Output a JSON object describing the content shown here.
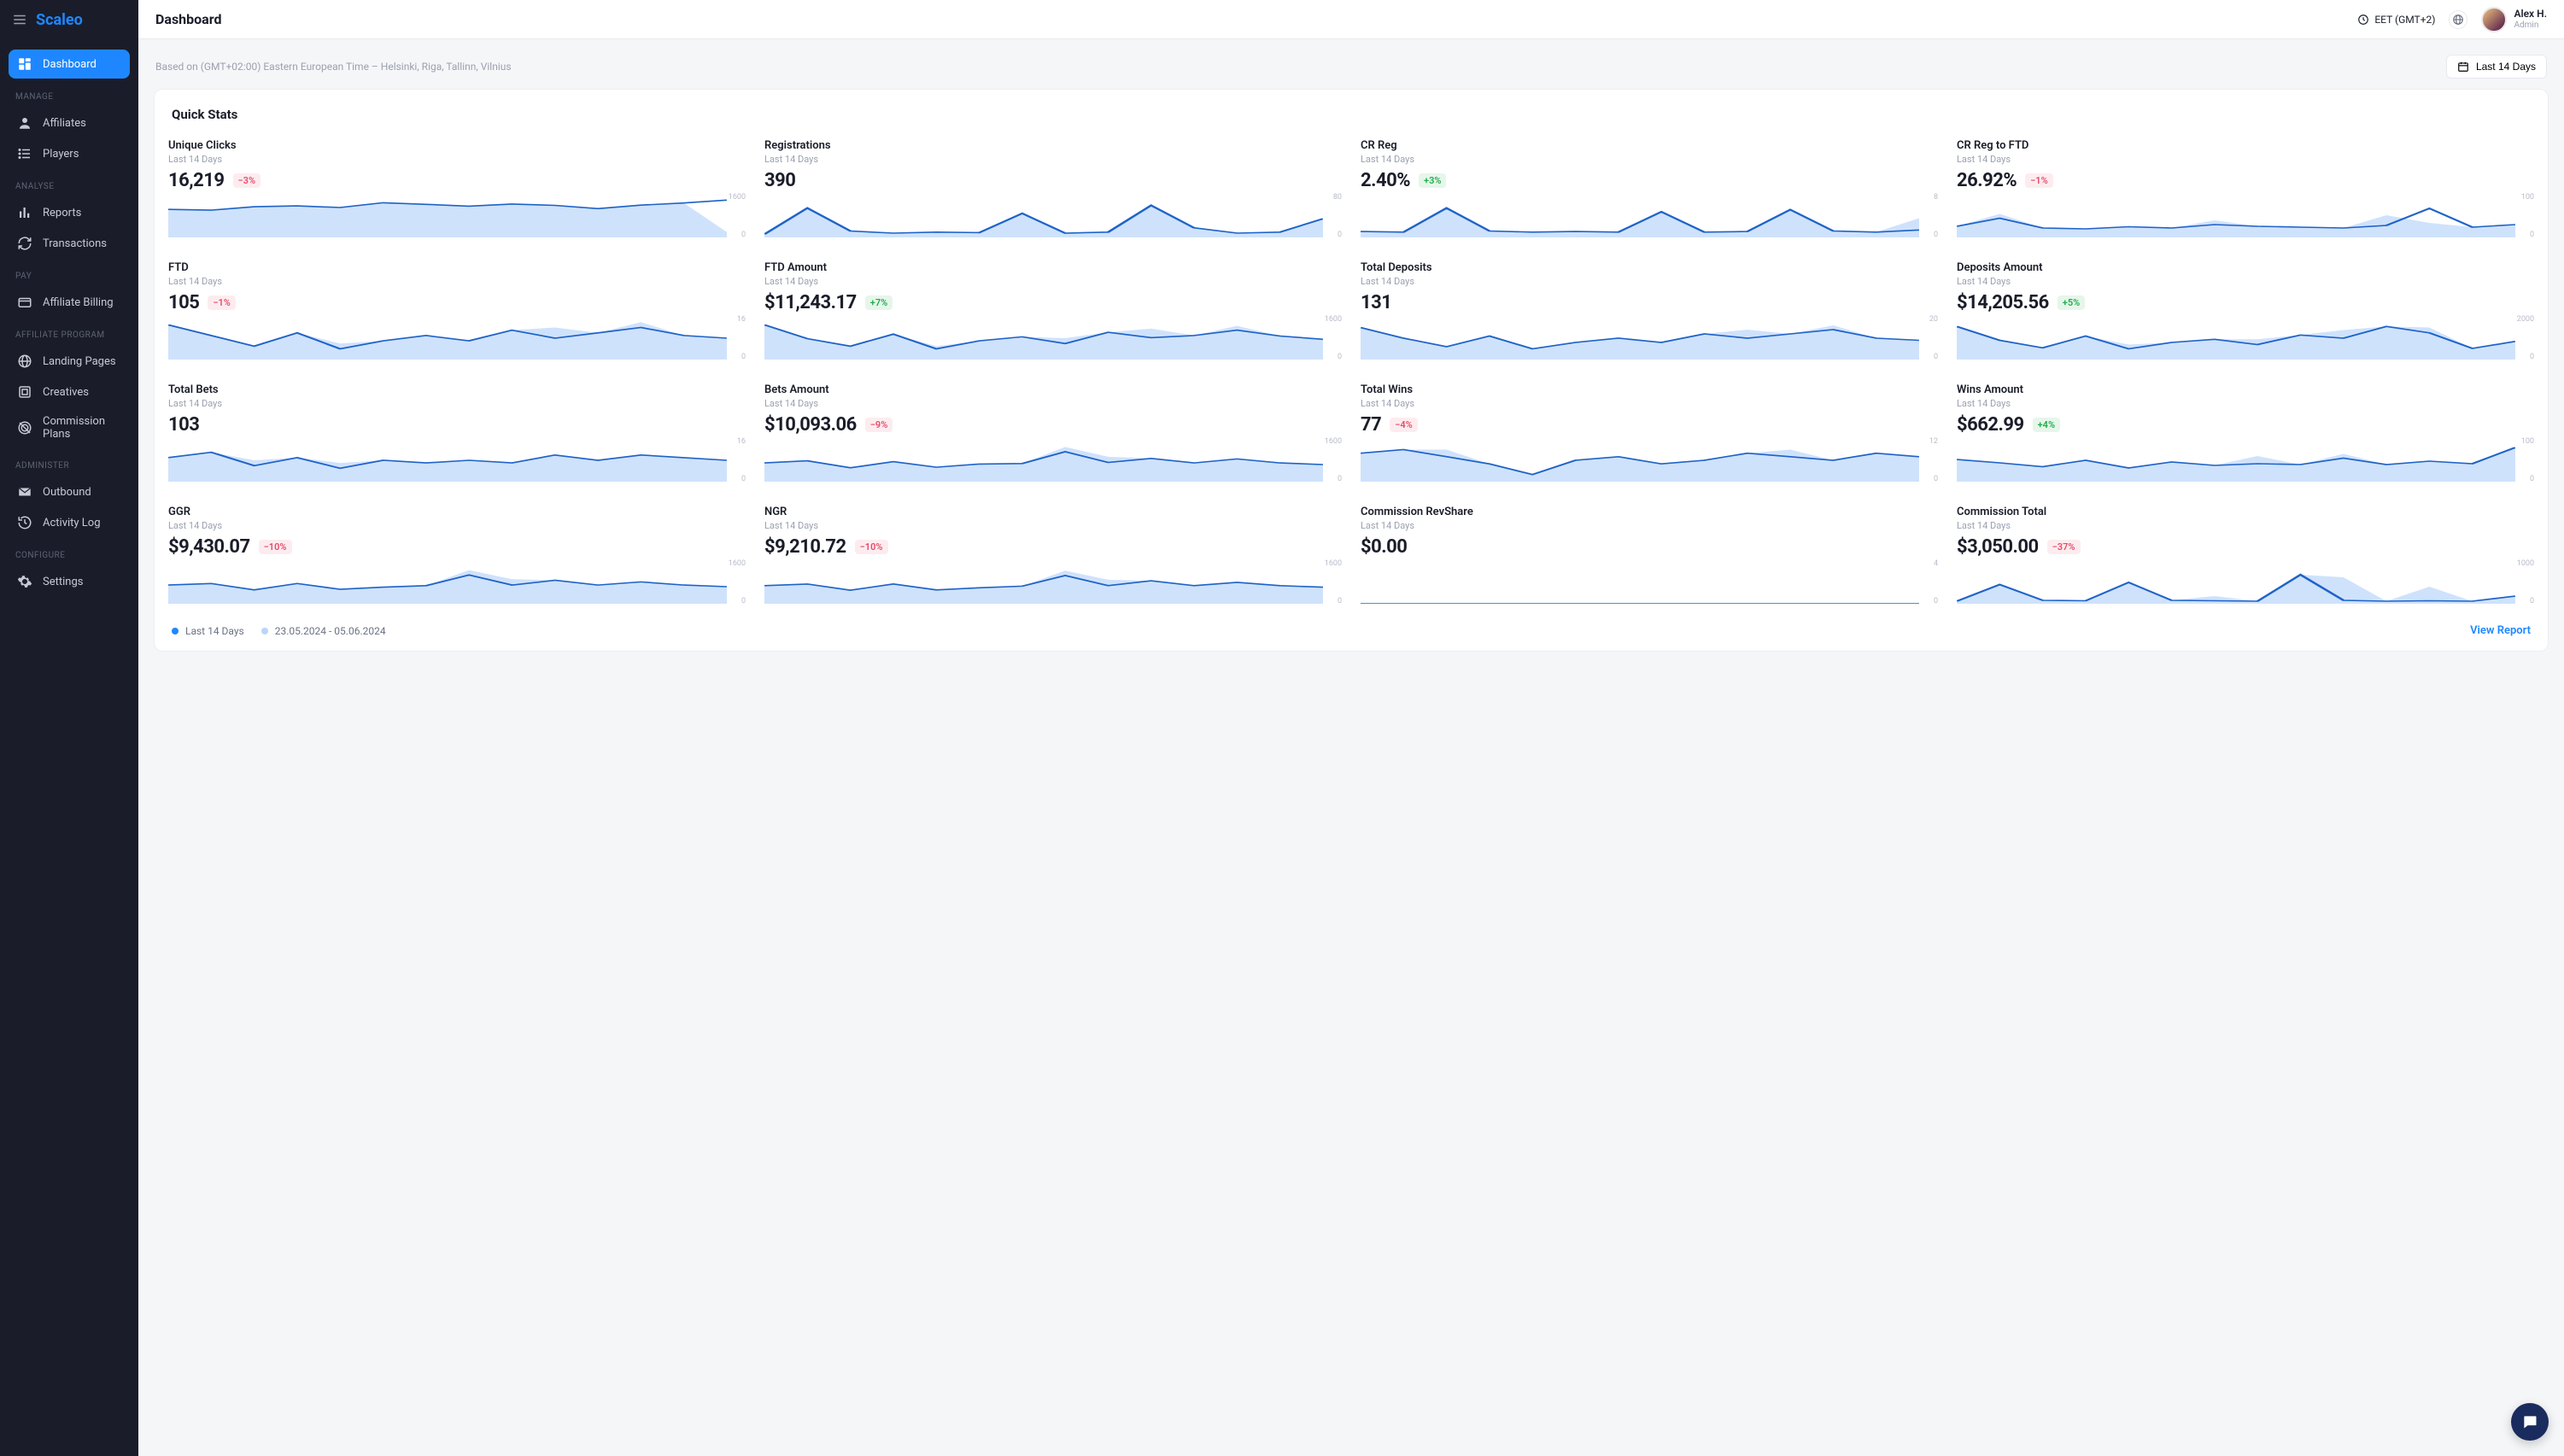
{
  "brand": "Scaleo",
  "header": {
    "title": "Dashboard",
    "timezone": "EET (GMT+2)",
    "user": {
      "name": "Alex H.",
      "role": "Admin"
    }
  },
  "subheader": {
    "note": "Based on (GMT+02:00) Eastern European Time – Helsinki, Riga, Tallinn, Vilnius",
    "period_button": "Last 14 Days"
  },
  "sidebar": {
    "top_item": {
      "label": "Dashboard",
      "icon": "dashboard"
    },
    "sections": [
      {
        "label": "MANAGE",
        "items": [
          {
            "label": "Affiliates",
            "icon": "user"
          },
          {
            "label": "Players",
            "icon": "list"
          }
        ]
      },
      {
        "label": "ANALYSE",
        "items": [
          {
            "label": "Reports",
            "icon": "bars"
          },
          {
            "label": "Transactions",
            "icon": "refresh"
          }
        ]
      },
      {
        "label": "PAY",
        "items": [
          {
            "label": "Affiliate Billing",
            "icon": "card"
          }
        ]
      },
      {
        "label": "AFFILIATE PROGRAM",
        "items": [
          {
            "label": "Landing Pages",
            "icon": "globe"
          },
          {
            "label": "Creatives",
            "icon": "creative"
          },
          {
            "label": "Commission Plans",
            "icon": "target"
          }
        ]
      },
      {
        "label": "ADMINISTER",
        "items": [
          {
            "label": "Outbound",
            "icon": "mail"
          },
          {
            "label": "Activity Log",
            "icon": "history"
          }
        ]
      },
      {
        "label": "CONFIGURE",
        "items": [
          {
            "label": "Settings",
            "icon": "gear"
          }
        ]
      }
    ]
  },
  "panel": {
    "title": "Quick Stats",
    "period_sub": "Last 14 Days",
    "legend": {
      "primary_color": "#1e87ff",
      "primary_label": "Last 14 Days",
      "compare_color": "#b7d6fb",
      "compare_label": "23.05.2024 - 05.06.2024"
    },
    "view_report": "View Report",
    "chart_style": {
      "stroke": "#1e63c8",
      "fill": "#c7ddfb",
      "compare_fill": "#c7ddfb",
      "axis_text": "#b8bcc9",
      "height": 50
    },
    "cards": [
      {
        "title": "Unique Clicks",
        "value": "16,219",
        "delta": "−3%",
        "dir": "down",
        "max": "1600",
        "min": "0",
        "series": [
          1050,
          1020,
          1150,
          1180,
          1120,
          1300,
          1240,
          1170,
          1250,
          1200,
          1080,
          1210,
          1290,
          1400
        ],
        "compare": [
          1050,
          1020,
          1150,
          1180,
          1120,
          1300,
          1240,
          1170,
          1250,
          1200,
          1080,
          1210,
          1290,
          200
        ]
      },
      {
        "title": "Registrations",
        "value": "390",
        "delta": null,
        "dir": null,
        "max": "80",
        "min": "0",
        "series": [
          6,
          55,
          12,
          8,
          10,
          9,
          45,
          8,
          10,
          60,
          18,
          8,
          10,
          35
        ],
        "compare": [
          6,
          55,
          12,
          8,
          10,
          9,
          45,
          8,
          10,
          60,
          18,
          8,
          10,
          35
        ]
      },
      {
        "title": "CR Reg",
        "value": "2.40%",
        "delta": "+3%",
        "dir": "up",
        "max": "8",
        "min": "0",
        "series": [
          1.1,
          1.0,
          5.5,
          1.2,
          1.0,
          1.1,
          1.0,
          4.8,
          1.0,
          1.1,
          5.2,
          1.2,
          1.0,
          1.4
        ],
        "compare": [
          1.1,
          1.0,
          5.5,
          1.2,
          1.0,
          1.1,
          1.0,
          4.8,
          1.0,
          1.1,
          5.2,
          1.2,
          1.0,
          3.6
        ]
      },
      {
        "title": "CR Reg to FTD",
        "value": "26.92%",
        "delta": "−1%",
        "dir": "down",
        "max": "100",
        "min": "0",
        "series": [
          26,
          45,
          22,
          20,
          25,
          22,
          30,
          26,
          24,
          22,
          28,
          68,
          24,
          30
        ],
        "compare": [
          26,
          55,
          22,
          20,
          25,
          22,
          40,
          26,
          24,
          22,
          52,
          34,
          24,
          30
        ]
      },
      {
        "title": "FTD",
        "value": "105",
        "delta": "−1%",
        "dir": "down",
        "max": "16",
        "min": "0",
        "series": [
          13,
          9,
          5,
          10,
          4,
          7,
          9,
          7,
          11,
          8,
          10,
          12,
          9,
          8
        ],
        "compare": [
          13,
          9,
          5,
          10,
          6,
          7,
          9,
          7,
          11,
          12,
          10,
          14,
          9,
          8
        ]
      },
      {
        "title": "FTD Amount",
        "value": "$11,243.17",
        "delta": "+7%",
        "dir": "up",
        "max": "1600",
        "min": "0",
        "series": [
          1300,
          780,
          500,
          950,
          400,
          700,
          850,
          600,
          1020,
          820,
          900,
          1100,
          880,
          760
        ],
        "compare": [
          1300,
          780,
          500,
          950,
          500,
          700,
          850,
          800,
          1020,
          1160,
          900,
          1260,
          880,
          760
        ]
      },
      {
        "title": "Total Deposits",
        "value": "131",
        "delta": null,
        "dir": null,
        "max": "20",
        "min": "0",
        "series": [
          15,
          10,
          6,
          11,
          5,
          8,
          10,
          8,
          12,
          10,
          12,
          14,
          10,
          9
        ],
        "compare": [
          15,
          10,
          6,
          11,
          5,
          8,
          10,
          8,
          12,
          14,
          12,
          16,
          10,
          9
        ]
      },
      {
        "title": "Deposits Amount",
        "value": "$14,205.56",
        "delta": "+5%",
        "dir": "up",
        "max": "2000",
        "min": "0",
        "series": [
          1550,
          900,
          550,
          1100,
          500,
          800,
          950,
          700,
          1150,
          1000,
          1550,
          1250,
          520,
          850
        ],
        "compare": [
          1550,
          900,
          550,
          1100,
          700,
          800,
          950,
          950,
          1150,
          1380,
          1550,
          1500,
          520,
          850
        ]
      },
      {
        "title": "Total Bets",
        "value": "103",
        "delta": null,
        "dir": null,
        "max": "16",
        "min": "0",
        "series": [
          9,
          11,
          6,
          9,
          5,
          8,
          7,
          8,
          7,
          10,
          8,
          10,
          9,
          8
        ],
        "compare": [
          9,
          11,
          8,
          9,
          7,
          8,
          7,
          8,
          7,
          10,
          8,
          10,
          9,
          8
        ]
      },
      {
        "title": "Bets Amount",
        "value": "$10,093.06",
        "delta": "−9%",
        "dir": "down",
        "max": "1600",
        "min": "0",
        "series": [
          700,
          780,
          520,
          750,
          540,
          660,
          680,
          1120,
          720,
          870,
          700,
          850,
          700,
          640
        ],
        "compare": [
          700,
          780,
          520,
          750,
          540,
          660,
          680,
          1300,
          930,
          870,
          700,
          850,
          700,
          640
        ]
      },
      {
        "title": "Total Wins",
        "value": "77",
        "delta": "−4%",
        "dir": "down",
        "max": "12",
        "min": "0",
        "series": [
          8,
          9,
          7,
          5,
          2,
          6,
          7,
          5,
          6,
          8,
          7,
          6,
          8,
          7
        ],
        "compare": [
          8,
          9,
          9,
          5,
          2,
          6,
          7,
          5,
          6,
          8,
          9,
          6,
          8,
          7
        ]
      },
      {
        "title": "Wins Amount",
        "value": "$662.99",
        "delta": "+4%",
        "dir": "up",
        "max": "100",
        "min": "0",
        "series": [
          52,
          44,
          35,
          50,
          32,
          46,
          38,
          42,
          40,
          55,
          40,
          48,
          42,
          80
        ],
        "compare": [
          52,
          44,
          35,
          50,
          32,
          46,
          38,
          60,
          40,
          65,
          40,
          48,
          42,
          80
        ]
      },
      {
        "title": "GGR",
        "value": "$9,430.07",
        "delta": "−10%",
        "dir": "down",
        "max": "1600",
        "min": "0",
        "series": [
          700,
          760,
          520,
          760,
          540,
          620,
          680,
          1080,
          700,
          880,
          700,
          820,
          700,
          640
        ],
        "compare": [
          700,
          760,
          520,
          760,
          540,
          620,
          680,
          1260,
          920,
          880,
          700,
          820,
          700,
          640
        ]
      },
      {
        "title": "NGR",
        "value": "$9,210.72",
        "delta": "−10%",
        "dir": "down",
        "max": "1600",
        "min": "0",
        "series": [
          680,
          740,
          510,
          740,
          520,
          600,
          660,
          1060,
          680,
          860,
          680,
          800,
          680,
          620
        ],
        "compare": [
          680,
          740,
          510,
          740,
          520,
          600,
          660,
          1240,
          900,
          860,
          680,
          800,
          680,
          620
        ]
      },
      {
        "title": "Commission RevShare",
        "value": "$0.00",
        "delta": null,
        "dir": null,
        "max": "4",
        "min": "0",
        "series": [
          0,
          0,
          0,
          0,
          0,
          0,
          0,
          0,
          0,
          0,
          0,
          0,
          0,
          0
        ],
        "compare": [
          0,
          0,
          0,
          0,
          0,
          0,
          0,
          0,
          0,
          0,
          0,
          0,
          0,
          0
        ]
      },
      {
        "title": "Commission Total",
        "value": "$3,050.00",
        "delta": "−37%",
        "dir": "down",
        "max": "1000",
        "min": "0",
        "series": [
          60,
          450,
          80,
          70,
          500,
          80,
          70,
          60,
          680,
          80,
          60,
          70,
          60,
          180
        ],
        "compare": [
          60,
          450,
          80,
          70,
          500,
          80,
          180,
          60,
          680,
          620,
          60,
          400,
          60,
          180
        ]
      }
    ]
  }
}
